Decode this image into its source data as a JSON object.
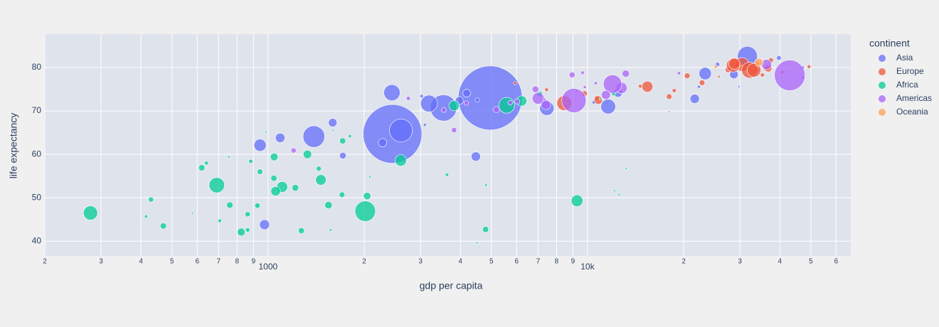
{
  "chart_data": {
    "type": "scatter",
    "log_x": true,
    "grid": true,
    "xlabel": "gdp per capita",
    "ylabel": "life expectancy",
    "legend_title": "continent",
    "legend_position": "right",
    "xlim": [
      199,
      66700
    ],
    "ylim": [
      36.6,
      87.7
    ],
    "xticks": [
      {
        "value": 200,
        "label": "2"
      },
      {
        "value": 300,
        "label": "3"
      },
      {
        "value": 400,
        "label": "4"
      },
      {
        "value": 500,
        "label": "5"
      },
      {
        "value": 600,
        "label": "6"
      },
      {
        "value": 700,
        "label": "7"
      },
      {
        "value": 800,
        "label": "8"
      },
      {
        "value": 900,
        "label": "9"
      },
      1000,
      {
        "value": 2000,
        "label": "2"
      },
      {
        "value": 3000,
        "label": "3"
      },
      {
        "value": 4000,
        "label": "4"
      },
      {
        "value": 5000,
        "label": "5"
      },
      {
        "value": 6000,
        "label": "6"
      },
      {
        "value": 7000,
        "label": "7"
      },
      {
        "value": 8000,
        "label": "8"
      },
      {
        "value": 9000,
        "label": "9"
      },
      {
        "value": 10000,
        "label": "10k"
      },
      {
        "value": 20000,
        "label": "2"
      },
      {
        "value": 30000,
        "label": "3"
      },
      {
        "value": 40000,
        "label": "4"
      },
      {
        "value": 50000,
        "label": "5"
      },
      {
        "value": 60000,
        "label": "6"
      }
    ],
    "yticks": [
      40,
      50,
      60,
      70,
      80
    ],
    "series": [
      {
        "name": "Asia",
        "color": "#636efa",
        "x": [
          974.6,
          29796,
          1391,
          1714,
          4959,
          39725,
          2452,
          3541,
          11606,
          4471,
          25523,
          31656,
          4519,
          1593,
          23348,
          47307,
          10461,
          12452,
          3096,
          944,
          1091,
          22316,
          2606,
          3190,
          21655,
          47143,
          3970,
          4185,
          28718,
          7458,
          2442,
          3025,
          2281
        ],
        "values": [
          43.8,
          75.6,
          64.1,
          59.7,
          73.0,
          82.2,
          64.7,
          70.7,
          71.0,
          59.5,
          80.7,
          82.6,
          72.5,
          67.3,
          78.6,
          77.6,
          72.0,
          74.2,
          66.8,
          62.1,
          63.8,
          75.6,
          65.5,
          71.7,
          72.8,
          80.0,
          72.4,
          74.1,
          78.4,
          70.6,
          74.2,
          73.4,
          62.7
        ],
        "sizes": [
          31.9,
          0.7,
          150.4,
          14.1,
          1318.7,
          7.0,
          1110.4,
          223.5,
          69.5,
          27.5,
          6.4,
          127.5,
          6.1,
          23.3,
          49.0,
          2.5,
          3.9,
          24.8,
          2.9,
          47.8,
          28.9,
          3.2,
          169.3,
          91.1,
          27.6,
          4.6,
          20.4,
          19.3,
          23.2,
          65.1,
          85.3,
          4.0,
          22.2
        ]
      },
      {
        "name": "Europe",
        "color": "#ef553b",
        "x": [
          5937,
          36126,
          33693,
          7446,
          10681,
          14619,
          22833,
          35278,
          33207,
          30470,
          32170,
          27538,
          18009,
          36181,
          40676,
          28570,
          9254,
          36798,
          49357,
          15390,
          20510,
          10808,
          9786,
          18678,
          25768,
          28821,
          33860,
          37506,
          8458,
          33203
        ],
        "values": [
          76.4,
          79.8,
          79.4,
          74.9,
          73.0,
          75.7,
          76.5,
          78.3,
          79.3,
          80.7,
          79.4,
          79.5,
          73.3,
          81.8,
          78.9,
          80.5,
          74.5,
          79.8,
          80.2,
          75.6,
          78.1,
          72.5,
          74.0,
          74.7,
          77.9,
          80.9,
          80.9,
          81.7,
          71.8,
          79.4
        ],
        "sizes": [
          3.6,
          8.2,
          10.4,
          4.6,
          7.3,
          4.5,
          10.2,
          5.5,
          5.2,
          61.1,
          82.4,
          10.7,
          10.0,
          0.3,
          4.1,
          58.1,
          0.7,
          16.6,
          4.6,
          38.5,
          10.6,
          22.3,
          10.2,
          5.4,
          2.0,
          40.4,
          9.0,
          7.6,
          71.2,
          60.8
        ]
      },
      {
        "name": "Africa",
        "color": "#00cc96",
        "x": [
          6223,
          4797,
          1441,
          12570,
          1217,
          430,
          2042,
          706,
          1704,
          986,
          278,
          3633,
          1545,
          2082,
          5581,
          12154,
          641,
          691,
          13206,
          753,
          1328,
          943,
          579,
          1463,
          1569,
          415,
          12057,
          1045,
          759,
          1043,
          1803,
          10957,
          3820,
          824,
          4811,
          620,
          2014,
          863,
          1598,
          1712,
          863,
          926,
          9270,
          2602,
          4513,
          1107,
          883,
          7093,
          1056,
          1271,
          470
        ],
        "values": [
          72.3,
          42.7,
          56.7,
          50.7,
          52.3,
          49.6,
          50.4,
          44.7,
          50.7,
          65.2,
          46.5,
          55.3,
          48.3,
          54.8,
          71.3,
          51.6,
          58.0,
          52.9,
          56.7,
          59.4,
          60.0,
          56.0,
          46.4,
          54.1,
          42.6,
          45.7,
          74.0,
          59.4,
          48.3,
          54.5,
          64.2,
          72.8,
          71.2,
          42.1,
          52.9,
          56.9,
          46.9,
          46.2,
          65.5,
          63.1,
          42.6,
          48.2,
          49.3,
          58.6,
          39.6,
          52.5,
          58.4,
          73.9,
          51.5,
          42.4,
          43.5
        ],
        "sizes": [
          33.3,
          12.4,
          8.1,
          1.6,
          14.3,
          8.4,
          17.7,
          4.4,
          10.2,
          0.7,
          64.6,
          3.8,
          18.0,
          0.5,
          80.3,
          0.55,
          4.9,
          76.5,
          1.45,
          1.7,
          22.9,
          9.9,
          1.5,
          35.6,
          2.0,
          3.2,
          6.0,
          19.2,
          13.3,
          12.0,
          3.3,
          1.25,
          33.8,
          20.0,
          2.05,
          12.9,
          135.0,
          8.9,
          0.2,
          12.3,
          6.1,
          9.1,
          44.0,
          42.3,
          1.1,
          38.1,
          5.7,
          10.3,
          29.2,
          11.7,
          12.3
        ]
      },
      {
        "name": "Americas",
        "color": "#ab63fa",
        "x": [
          12779,
          3822,
          9066,
          36319,
          13172,
          7007,
          9645,
          8948,
          6025,
          6873,
          5728,
          5186,
          1202,
          3548,
          7321,
          11978,
          2749,
          9809,
          4173,
          7409,
          19329,
          18009,
          42952,
          10611,
          11416
        ],
        "values": [
          75.3,
          65.6,
          72.4,
          80.7,
          78.6,
          72.9,
          78.8,
          78.3,
          72.2,
          75.0,
          71.9,
          70.3,
          60.9,
          70.2,
          72.6,
          76.2,
          72.9,
          75.5,
          71.8,
          71.4,
          78.7,
          69.8,
          78.2,
          76.4,
          73.7
        ],
        "sizes": [
          40.3,
          9.1,
          190.0,
          33.4,
          16.3,
          44.2,
          4.1,
          11.4,
          9.3,
          13.8,
          6.9,
          12.6,
          8.5,
          7.5,
          2.8,
          108.7,
          5.7,
          3.2,
          6.7,
          28.7,
          3.9,
          1.1,
          301.1,
          3.4,
          26.1
        ]
      },
      {
        "name": "Oceania",
        "color": "#ffa15a",
        "x": [
          34435,
          25185
        ],
        "values": [
          81.2,
          80.2
        ],
        "sizes": [
          20.4,
          4.1
        ]
      }
    ]
  }
}
